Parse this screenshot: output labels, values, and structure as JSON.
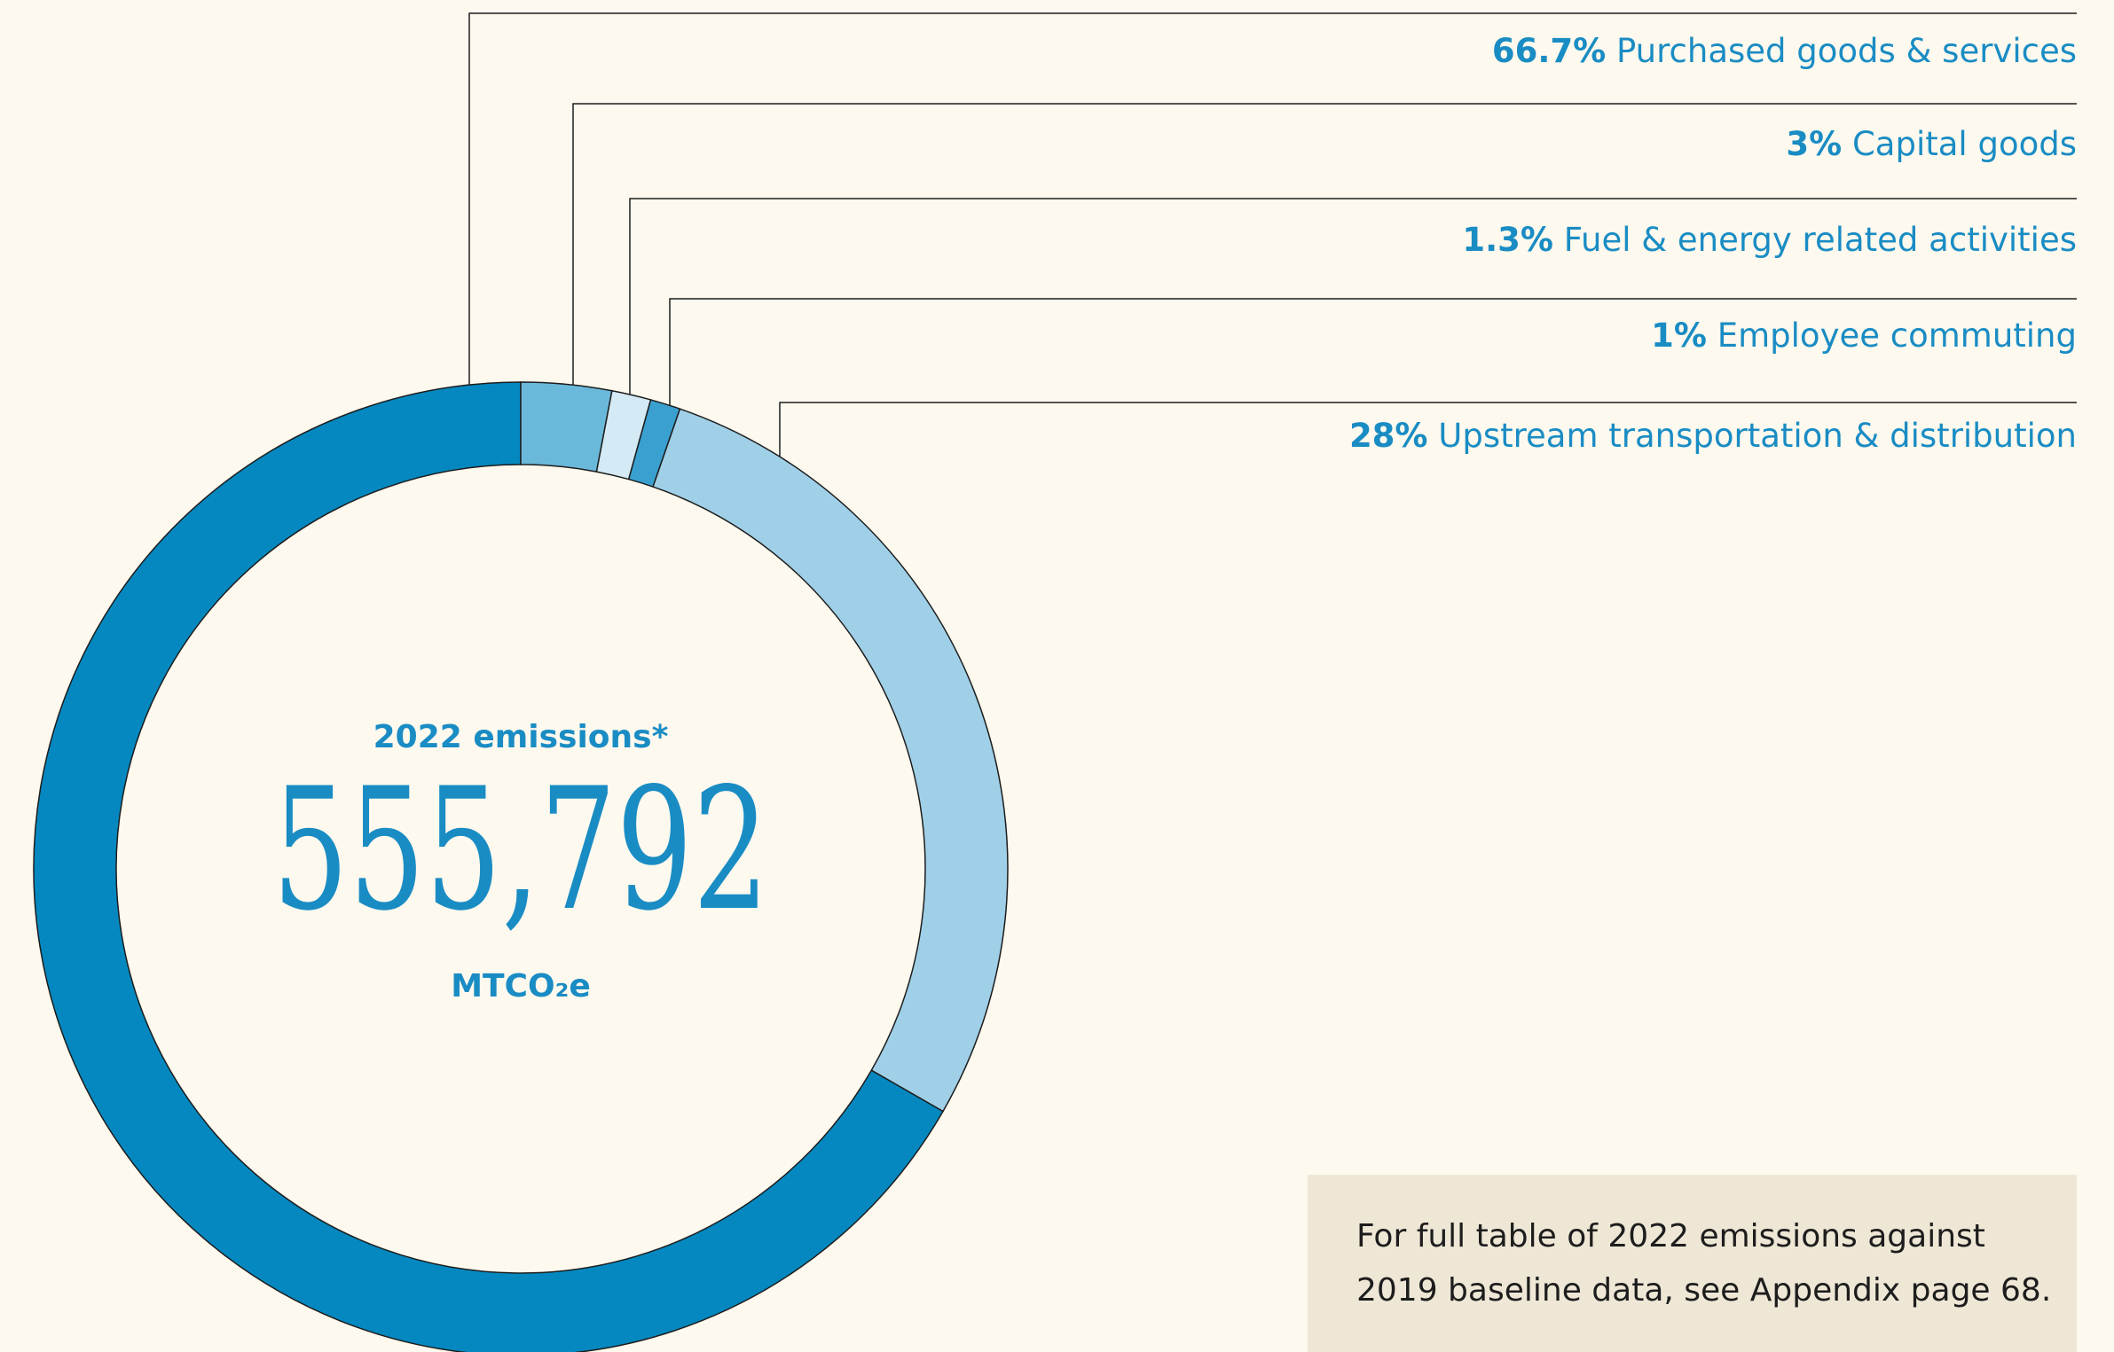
{
  "chart_data": {
    "type": "pie",
    "categories": [
      "Purchased goods & services",
      "Capital goods",
      "Fuel & energy related activities",
      "Employee commuting",
      "Upstream transportation & distribution"
    ],
    "values": [
      66.7,
      3,
      1.3,
      1,
      28
    ],
    "value_labels": [
      "66.7%",
      "3%",
      "1.3%",
      "1%",
      "28%"
    ],
    "colors": [
      "#0588c0",
      "#6bb9da",
      "#d4eaf5",
      "#3aa0d0",
      "#a0d0e8"
    ],
    "center_title": "2022 emissions*",
    "center_value": "555,792",
    "center_unit": "MTCO₂e"
  },
  "note": {
    "lines": [
      "For full table of 2022 emissions against",
      "2019 baseline data, see Appendix page 68."
    ]
  }
}
